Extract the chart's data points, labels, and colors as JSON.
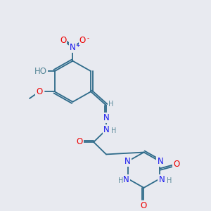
{
  "bg_color": "#e8eaf0",
  "bond_color": "#2e6b8a",
  "atom_colors": {
    "N": "#1a1aee",
    "O": "#ee0000",
    "C": "#2e6b8a",
    "H": "#5a8a9a"
  },
  "font_size_atom": 8.5,
  "font_size_small": 7.0
}
